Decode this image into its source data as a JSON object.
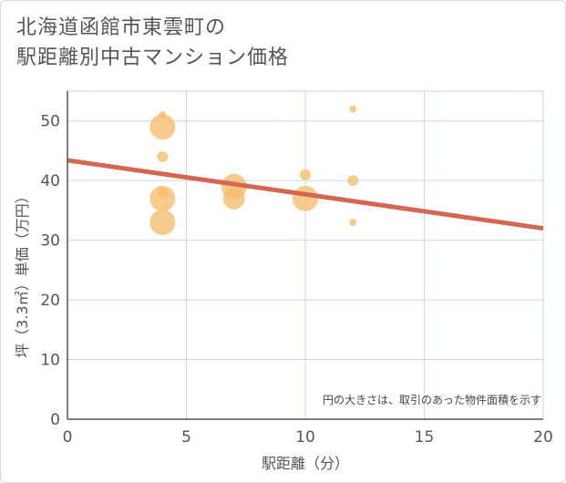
{
  "chart_data": {
    "type": "scatter",
    "title_line1": "北海道函館市東雲町の",
    "title_line2": "駅距離別中古マンション価格",
    "xlabel": "駅距離（分）",
    "ylabel": "坪（3.3㎡）単価（万円）",
    "xlim": [
      0,
      20
    ],
    "ylim": [
      0,
      55
    ],
    "xticks": [
      0,
      5,
      10,
      15,
      20
    ],
    "yticks": [
      0,
      10,
      20,
      30,
      40,
      50
    ],
    "grid": true,
    "annotation": "円の大きさは、取引のあった物件面積を示す",
    "points": [
      {
        "x": 4,
        "y": 51,
        "size": 1
      },
      {
        "x": 4,
        "y": 49,
        "size": 5
      },
      {
        "x": 4,
        "y": 44,
        "size": 2
      },
      {
        "x": 4,
        "y": 38,
        "size": 2
      },
      {
        "x": 4,
        "y": 37,
        "size": 5
      },
      {
        "x": 4,
        "y": 33,
        "size": 5
      },
      {
        "x": 7,
        "y": 39,
        "size": 5
      },
      {
        "x": 7,
        "y": 37,
        "size": 4
      },
      {
        "x": 10,
        "y": 41,
        "size": 2
      },
      {
        "x": 10,
        "y": 37,
        "size": 5
      },
      {
        "x": 12,
        "y": 52,
        "size": 1
      },
      {
        "x": 12,
        "y": 40,
        "size": 2
      },
      {
        "x": 12,
        "y": 33,
        "size": 1
      }
    ],
    "trendline": {
      "x": [
        0,
        20
      ],
      "y": [
        43.4,
        32.0
      ]
    },
    "colors": {
      "point": "#f5be6e",
      "trend": "#d4674f",
      "grid": "#c9d6e3",
      "axis": "#555555"
    }
  }
}
